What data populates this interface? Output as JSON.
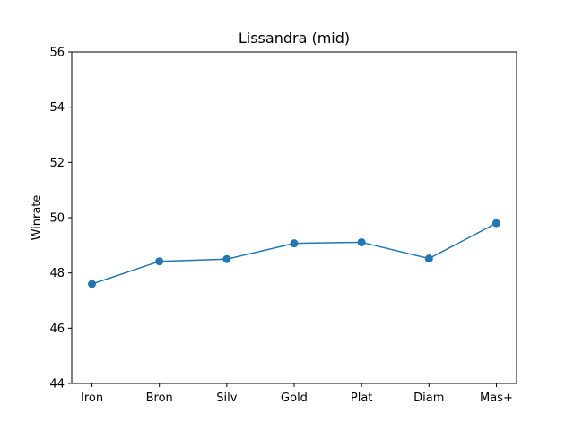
{
  "chart_data": {
    "type": "line",
    "title": "Lissandra (mid)",
    "xlabel": "",
    "ylabel": "Winrate",
    "categories": [
      "Iron",
      "Bron",
      "Silv",
      "Gold",
      "Plat",
      "Diam",
      "Mas+"
    ],
    "series": [
      {
        "values": [
          47.6,
          48.42,
          48.5,
          49.07,
          49.11,
          48.52,
          49.8
        ],
        "color": "#1f77b4"
      }
    ],
    "ylim": [
      44,
      56
    ],
    "yticks": [
      44,
      46,
      48,
      50,
      52,
      54,
      56
    ],
    "grid": false,
    "legend": "none"
  }
}
